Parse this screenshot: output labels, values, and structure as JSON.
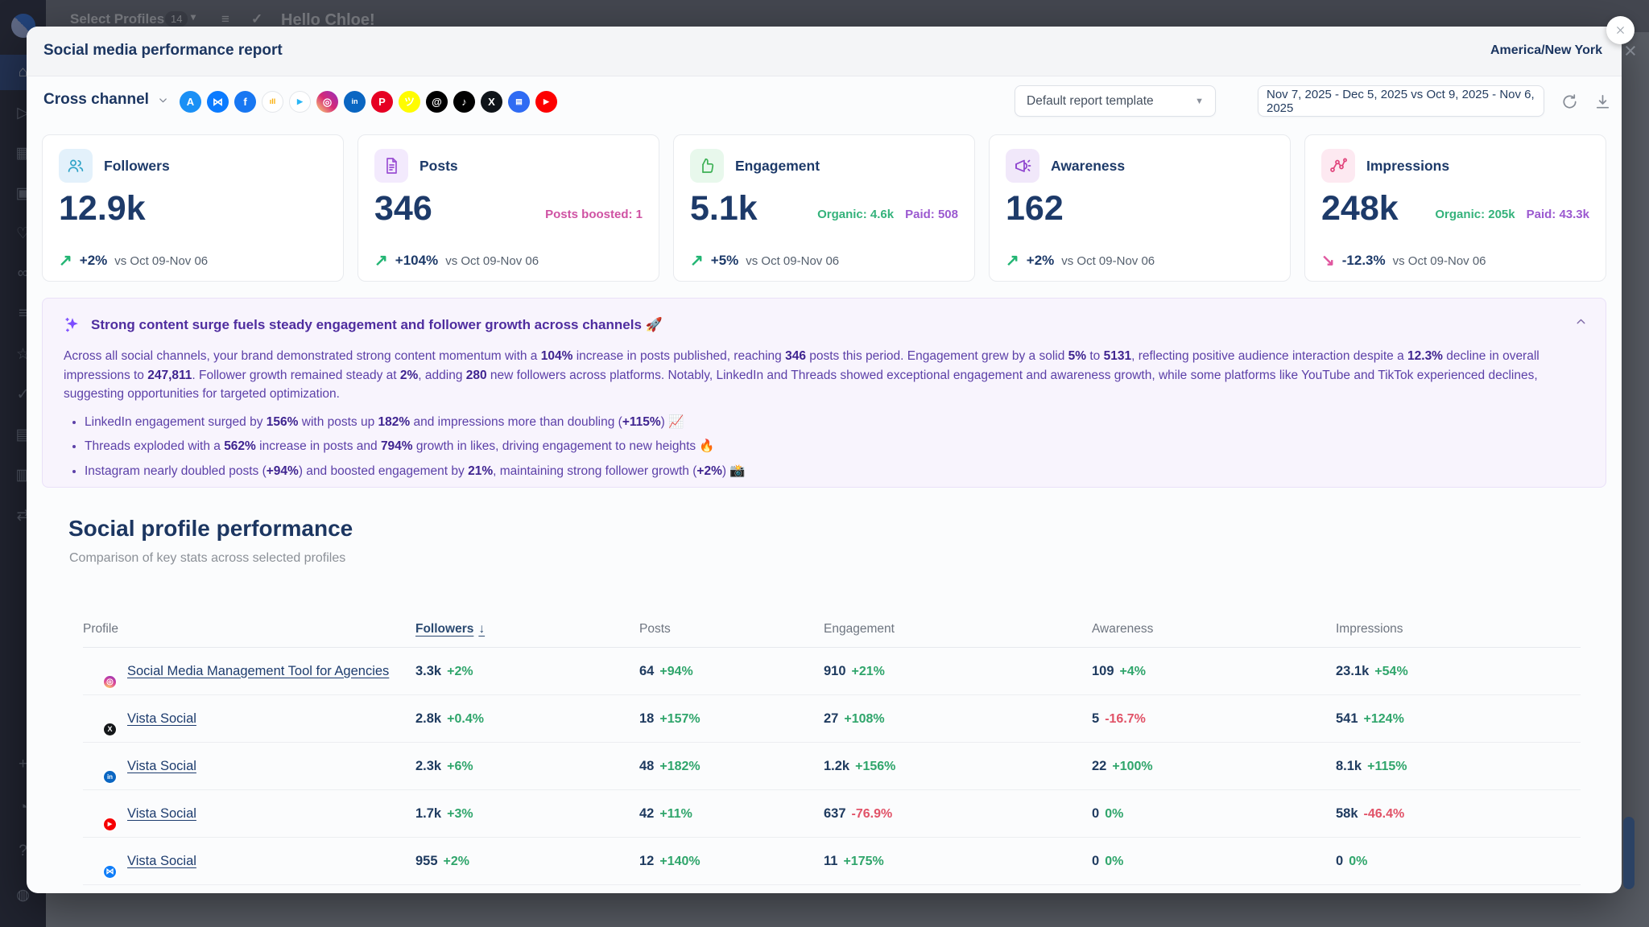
{
  "backdrop": {
    "topbar": {
      "select_profiles": "Select Profiles",
      "profiles_count": "14",
      "greeting": "Hello Chloe!"
    },
    "sidebar": {
      "items": [
        {
          "name": "home",
          "active": true
        },
        {
          "name": "publish"
        },
        {
          "name": "calendar"
        },
        {
          "name": "media"
        },
        {
          "name": "engagement",
          "dot": true
        },
        {
          "name": "connections"
        },
        {
          "name": "queue"
        },
        {
          "name": "reviews",
          "dot": true
        },
        {
          "name": "approvals"
        },
        {
          "name": "billing"
        },
        {
          "name": "company"
        },
        {
          "name": "share"
        }
      ],
      "bottom": [
        {
          "name": "create"
        },
        {
          "name": "notifications"
        },
        {
          "name": "help"
        },
        {
          "name": "account"
        }
      ]
    }
  },
  "modal": {
    "title": "Social media performance report",
    "timezone": "America/New York",
    "channel": {
      "label": "Cross channel"
    },
    "platforms": [
      {
        "name": "app-store-icon",
        "glyph": "A",
        "bg": "#1b90f5",
        "fg": "#ffffff"
      },
      {
        "name": "bluesky-icon",
        "glyph": "⋈",
        "bg": "#0b7bff",
        "fg": "#ffffff"
      },
      {
        "name": "facebook-icon",
        "glyph": "f",
        "bg": "#1877f2",
        "fg": "#ffffff"
      },
      {
        "name": "google-analytics-icon",
        "glyph": "ıll",
        "bg": "#ffffff",
        "fg": "#f9ab00",
        "border": "#e3e6ea",
        "small": true
      },
      {
        "name": "google-play-icon",
        "glyph": "▶",
        "bg": "#ffffff",
        "fg": "#29b6f6",
        "border": "#e3e6ea",
        "small": true
      },
      {
        "name": "instagram-icon",
        "glyph": "◎",
        "bg": "linear-gradient(45deg,#feda75,#d62976,#962fbf)",
        "fg": "#ffffff"
      },
      {
        "name": "linkedin-icon",
        "glyph": "in",
        "bg": "#0a66c2",
        "fg": "#ffffff",
        "small": true
      },
      {
        "name": "pinterest-icon",
        "glyph": "P",
        "bg": "#e60023",
        "fg": "#ffffff"
      },
      {
        "name": "snapchat-icon",
        "glyph": "ツ",
        "bg": "#fffc00",
        "fg": "#ffffff"
      },
      {
        "name": "threads-icon",
        "glyph": "@",
        "bg": "#000000",
        "fg": "#ffffff"
      },
      {
        "name": "tiktok-icon",
        "glyph": "♪",
        "bg": "#010101",
        "fg": "#ffffff"
      },
      {
        "name": "x-icon",
        "glyph": "X",
        "bg": "#0f1419",
        "fg": "#ffffff"
      },
      {
        "name": "google-business-icon",
        "glyph": "▤",
        "bg": "#2f6bf3",
        "fg": "#ffffff",
        "small": true
      },
      {
        "name": "youtube-icon",
        "glyph": "▶",
        "bg": "#fd0000",
        "fg": "#ffffff",
        "small": true
      }
    ],
    "toolbar": {
      "template_value": "Default report template",
      "date_range": "Nov 7, 2025 - Dec 5, 2025 vs Oct 9, 2025 - Nov 6, 2025"
    },
    "cards": [
      {
        "id": "followers",
        "label": "Followers",
        "value": "12.9k",
        "delta": "+2%",
        "vs": "vs Oct 09-Nov 06",
        "trend": "up",
        "icon": "users-icon",
        "icon_bg": "#e3f1fb",
        "icon_color": "#2fa3c7"
      },
      {
        "id": "posts",
        "label": "Posts",
        "value": "346",
        "side_note": {
          "text": "Posts boosted: 1",
          "color": "#cf52a3"
        },
        "delta": "+104%",
        "vs": "vs Oct 09-Nov 06",
        "trend": "up",
        "icon": "document-icon",
        "icon_bg": "#f3eafd",
        "icon_color": "#9a4fd3"
      },
      {
        "id": "engagement",
        "label": "Engagement",
        "value": "5.1k",
        "organic": {
          "text": "Organic: 4.6k",
          "color": "#34b27b"
        },
        "paid": {
          "text": "Paid: 508",
          "color": "#9b59d0"
        },
        "delta": "+5%",
        "vs": "vs Oct 09-Nov 06",
        "trend": "up",
        "icon": "thumbs-up-icon",
        "icon_bg": "#e8f8ec",
        "icon_color": "#3cb054"
      },
      {
        "id": "awareness",
        "label": "Awareness",
        "value": "162",
        "delta": "+2%",
        "vs": "vs Oct 09-Nov 06",
        "trend": "up",
        "icon": "megaphone-icon",
        "icon_bg": "#f1e8fa",
        "icon_color": "#8e44cf"
      },
      {
        "id": "impressions",
        "label": "Impressions",
        "value": "248k",
        "organic": {
          "text": "Organic: 205k",
          "color": "#34b27b"
        },
        "paid": {
          "text": "Paid: 43.3k",
          "color": "#9b59d0"
        },
        "delta": "-12.3%",
        "vs": "vs Oct 09-Nov 06",
        "trend": "down",
        "icon": "share-nodes-icon",
        "icon_bg": "#fde9f1",
        "icon_color": "#e1447c"
      }
    ],
    "summary": {
      "title": "Strong content surge fuels steady engagement and follower growth across channels 🚀",
      "paragraph": [
        {
          "t": "Across all social channels, your brand demonstrated strong content momentum with a "
        },
        {
          "t": "104%",
          "b": true
        },
        {
          "t": " increase in posts published, reaching "
        },
        {
          "t": "346",
          "b": true
        },
        {
          "t": " posts this period. Engagement grew by a solid "
        },
        {
          "t": "5%",
          "b": true
        },
        {
          "t": " to "
        },
        {
          "t": "5131",
          "b": true
        },
        {
          "t": ", reflecting positive audience interaction despite a "
        },
        {
          "t": "12.3%",
          "b": true
        },
        {
          "t": " decline in overall impressions to "
        },
        {
          "t": "247,811",
          "b": true
        },
        {
          "t": ". Follower growth remained steady at "
        },
        {
          "t": "2%",
          "b": true
        },
        {
          "t": ", adding "
        },
        {
          "t": "280",
          "b": true
        },
        {
          "t": " new followers across platforms. Notably, LinkedIn and Threads showed exceptional engagement and awareness growth, while some platforms like YouTube and TikTok experienced declines, suggesting opportunities for targeted optimization."
        }
      ],
      "bullets": [
        [
          {
            "t": "LinkedIn engagement surged by "
          },
          {
            "t": "156%",
            "b": true
          },
          {
            "t": " with posts up "
          },
          {
            "t": "182%",
            "b": true
          },
          {
            "t": " and impressions more than doubling ("
          },
          {
            "t": "+115%",
            "b": true
          },
          {
            "t": ") 📈"
          }
        ],
        [
          {
            "t": "Threads exploded with a "
          },
          {
            "t": "562%",
            "b": true
          },
          {
            "t": " increase in posts and "
          },
          {
            "t": "794%",
            "b": true
          },
          {
            "t": " growth in likes, driving engagement to new heights 🔥"
          }
        ],
        [
          {
            "t": "Instagram nearly doubled posts ("
          },
          {
            "t": "+94%",
            "b": true
          },
          {
            "t": ") and boosted engagement by "
          },
          {
            "t": "21%",
            "b": true
          },
          {
            "t": ", maintaining strong follower growth ("
          },
          {
            "t": "+2%",
            "b": true
          },
          {
            "t": ") 📸"
          }
        ]
      ]
    },
    "section": {
      "heading": "Social profile performance",
      "subheading": "Comparison of key stats across selected profiles"
    },
    "table": {
      "columns": [
        {
          "key": "profile",
          "label": "Profile"
        },
        {
          "key": "followers",
          "label": "Followers",
          "sorted": "desc"
        },
        {
          "key": "posts",
          "label": "Posts"
        },
        {
          "key": "engagement",
          "label": "Engagement"
        },
        {
          "key": "awareness",
          "label": "Awareness"
        },
        {
          "key": "impressions",
          "label": "Impressions"
        }
      ],
      "rows": [
        {
          "profile": "Social Media Management Tool for Agencies",
          "network": "instagram",
          "followers": {
            "v": "3.3k",
            "d": "+2%"
          },
          "posts": {
            "v": "64",
            "d": "+94%"
          },
          "engagement": {
            "v": "910",
            "d": "+21%"
          },
          "awareness": {
            "v": "109",
            "d": "+4%"
          },
          "impressions": {
            "v": "23.1k",
            "d": "+54%"
          }
        },
        {
          "profile": "Vista Social",
          "network": "x",
          "followers": {
            "v": "2.8k",
            "d": "+0.4%"
          },
          "posts": {
            "v": "18",
            "d": "+157%"
          },
          "engagement": {
            "v": "27",
            "d": "+108%"
          },
          "awareness": {
            "v": "5",
            "d": "-16.7%"
          },
          "impressions": {
            "v": "541",
            "d": "+124%"
          }
        },
        {
          "profile": "Vista Social",
          "network": "linkedin",
          "followers": {
            "v": "2.3k",
            "d": "+6%"
          },
          "posts": {
            "v": "48",
            "d": "+182%"
          },
          "engagement": {
            "v": "1.2k",
            "d": "+156%"
          },
          "awareness": {
            "v": "22",
            "d": "+100%"
          },
          "impressions": {
            "v": "8.1k",
            "d": "+115%"
          }
        },
        {
          "profile": "Vista Social",
          "network": "youtube",
          "followers": {
            "v": "1.7k",
            "d": "+3%"
          },
          "posts": {
            "v": "42",
            "d": "+11%"
          },
          "engagement": {
            "v": "637",
            "d": "-76.9%"
          },
          "awareness": {
            "v": "0",
            "d": "0%"
          },
          "impressions": {
            "v": "58k",
            "d": "-46.4%"
          }
        },
        {
          "profile": "Vista Social",
          "network": "bluesky",
          "followers": {
            "v": "955",
            "d": "+2%"
          },
          "posts": {
            "v": "12",
            "d": "+140%"
          },
          "engagement": {
            "v": "11",
            "d": "+175%"
          },
          "awareness": {
            "v": "0",
            "d": "0%"
          },
          "impressions": {
            "v": "0",
            "d": "0%"
          }
        }
      ]
    },
    "colors": {
      "accent_navy": "#1d3a69",
      "positive_green": "#2fa56b",
      "negative_red": "#e15368",
      "trend_up_arrow": "#22b573",
      "trend_down_arrow": "#e0569f"
    }
  }
}
